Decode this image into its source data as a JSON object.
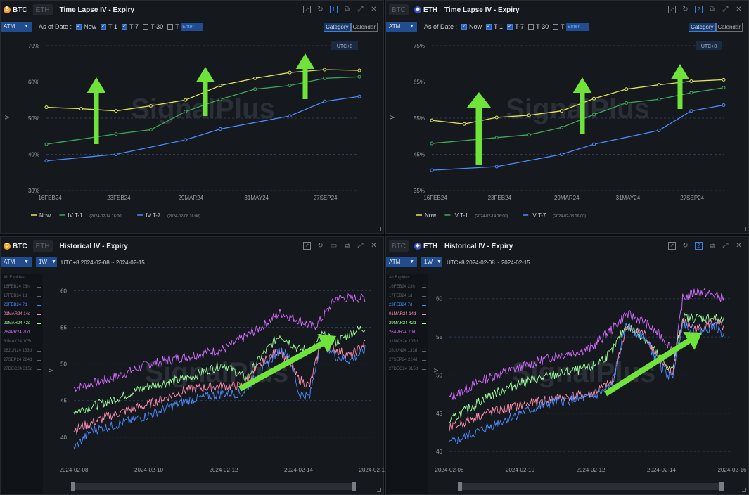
{
  "panels": {
    "btc_timelapse": {
      "coins": {
        "active": "BTC",
        "inactive": "ETH"
      },
      "title": "Time Lapse IV - Expiry",
      "window_badge": "1",
      "atm": "ATM",
      "as_of": "As of Date :",
      "checks": [
        {
          "label": "Now",
          "checked": true
        },
        {
          "label": "T-1",
          "checked": true
        },
        {
          "label": "T-7",
          "checked": true
        },
        {
          "label": "T-30",
          "checked": false
        },
        {
          "label": "T-",
          "checked": false
        }
      ],
      "input_placeholder": "Enter",
      "toggle": [
        "Category",
        "Calendar"
      ],
      "timezone": "UTC+8",
      "watermark": "SignalPlus",
      "legend": [
        {
          "label": "Now",
          "note": ""
        },
        {
          "label": "IV T-1",
          "note": "(2024-02-14 16:00)"
        },
        {
          "label": "IV T-7",
          "note": "(2024-02-08 16:00)"
        }
      ]
    },
    "eth_timelapse": {
      "coins": {
        "active": "ETH",
        "inactive": "BTC"
      },
      "title": "Time Lapse IV - Expiry",
      "window_badge": "2",
      "atm": "ATM",
      "as_of": "As of Date :",
      "checks": [
        {
          "label": "Now",
          "checked": true
        },
        {
          "label": "T-1",
          "checked": true
        },
        {
          "label": "T-7",
          "checked": true
        },
        {
          "label": "T-30",
          "checked": false
        },
        {
          "label": "T-",
          "checked": false
        }
      ],
      "input_placeholder": "Enter",
      "toggle": [
        "Category",
        "Calendar"
      ],
      "timezone": "UTC+8",
      "watermark": "SignalPlus",
      "legend": [
        {
          "label": "Now",
          "note": ""
        },
        {
          "label": "IV T-1",
          "note": "(2024-02-14 16:00)"
        },
        {
          "label": "IV T-7",
          "note": "(2024-02-08 16:00)"
        }
      ]
    },
    "btc_historical": {
      "coins": {
        "active": "BTC",
        "inactive": "ETH"
      },
      "title": "Historical IV - Expiry",
      "atm": "ATM",
      "period": "1W",
      "range": "UTC+8 2024-02-08 ~ 2024-02-15",
      "watermark": "SignalPlus",
      "expiries_header": "All Expiries",
      "expiries": [
        {
          "label": "16FEB24 23h",
          "color": "#5d636c"
        },
        {
          "label": "17FEB24 1d",
          "color": "#5d636c"
        },
        {
          "label": "23FEB24 7d",
          "color": "#4a8cff"
        },
        {
          "label": "01MAR24 14d",
          "color": "#ff8fb0"
        },
        {
          "label": "29MAR24 42d",
          "color": "#9cff9c"
        },
        {
          "label": "26APR24 70d",
          "color": "#d26bff"
        },
        {
          "label": "31MAY24 105d",
          "color": "#5d636c"
        },
        {
          "label": "28JUN24 133d",
          "color": "#5d636c"
        },
        {
          "label": "27SEP24 224d",
          "color": "#5d636c"
        },
        {
          "label": "27DEC24 315d",
          "color": "#5d636c"
        }
      ]
    },
    "eth_historical": {
      "coins": {
        "active": "ETH",
        "inactive": "BTC"
      },
      "title": "Historical IV - Expiry",
      "atm": "ATM",
      "period": "1W",
      "range": "UTC+8 2024-02-08 ~ 2024-02-15",
      "watermark": "SignalPlus",
      "expiries_header": "All Expiries",
      "expiries": [
        {
          "label": "16FEB24 23h",
          "color": "#5d636c"
        },
        {
          "label": "17FEB24 1d",
          "color": "#5d636c"
        },
        {
          "label": "23FEB24 7d",
          "color": "#4a8cff"
        },
        {
          "label": "01MAR24 14d",
          "color": "#ff8fb0"
        },
        {
          "label": "29MAR24 42d",
          "color": "#9cff9c"
        },
        {
          "label": "26APR24 70d",
          "color": "#d26bff"
        },
        {
          "label": "31MAY24 105d",
          "color": "#5d636c"
        },
        {
          "label": "28JUN24 133d",
          "color": "#5d636c"
        },
        {
          "label": "27SEP24 224d",
          "color": "#5d636c"
        },
        {
          "label": "27DEC24 315d",
          "color": "#5d636c"
        }
      ]
    }
  },
  "chart_data": [
    {
      "id": "btc_tl",
      "type": "line",
      "ylabel": "IV",
      "yticks": [
        "70%",
        "60%",
        "50%",
        "40%",
        "30%"
      ],
      "ylim": [
        30,
        70
      ],
      "xticks": [
        "16FEB24",
        "23FEB24",
        "29MAR24",
        "31MAY24",
        "27SEP24"
      ],
      "series": [
        {
          "name": "Now",
          "color": "#e6e65a",
          "values": [
            53,
            52.6,
            52,
            53.4,
            55,
            59,
            61,
            62.6,
            63.4,
            63.2
          ]
        },
        {
          "name": "IV T-1",
          "color": "#3ea85a",
          "values": [
            42.8,
            null,
            45.6,
            46.8,
            51.8,
            55.2,
            58,
            59,
            61,
            61.4
          ]
        },
        {
          "name": "IV T-7",
          "color": "#4a8cff",
          "values": [
            38.2,
            null,
            40,
            null,
            44,
            47,
            null,
            50.6,
            54.6,
            56
          ]
        }
      ],
      "arrow_color": "#6fe33a"
    },
    {
      "id": "eth_tl",
      "type": "line",
      "ylabel": "IV",
      "yticks": [
        "75%",
        "65%",
        "55%",
        "45%",
        "35%"
      ],
      "ylim": [
        35,
        75
      ],
      "xticks": [
        "16FEB24",
        "23FEB24",
        "29MAR24",
        "31MAY24",
        "27SEP24"
      ],
      "series": [
        {
          "name": "Now",
          "color": "#e6e65a",
          "values": [
            54.4,
            53.4,
            55.2,
            55.8,
            57,
            60.4,
            63,
            64.2,
            65.2,
            65.6
          ]
        },
        {
          "name": "IV T-1",
          "color": "#3ea85a",
          "values": [
            48,
            null,
            49.6,
            50.4,
            52.4,
            56,
            59.2,
            60.2,
            62,
            63.4
          ]
        },
        {
          "name": "IV T-7",
          "color": "#4a8cff",
          "values": [
            40.6,
            null,
            41.6,
            null,
            45,
            47.8,
            null,
            51.6,
            57,
            58.6
          ]
        }
      ],
      "arrow_color": "#6fe33a"
    },
    {
      "id": "btc_hist",
      "type": "line",
      "ylabel": "IV",
      "yticks": [
        "60",
        "55",
        "50",
        "45",
        "40"
      ],
      "ylim": [
        37,
        61
      ],
      "xticks": [
        "2024-02-08",
        "2024-02-10",
        "2024-02-12",
        "2024-02-14",
        "2024-02-16"
      ],
      "xlim": [
        0,
        8
      ],
      "series": [
        {
          "name": "26APR24 70d",
          "color": "#d26bff",
          "anchors": [
            [
              0,
              46.7
            ],
            [
              1,
              48
            ],
            [
              2,
              50
            ],
            [
              3,
              51
            ],
            [
              4,
              52
            ],
            [
              5,
              55
            ],
            [
              5.5,
              57
            ],
            [
              6,
              56
            ],
            [
              6.4,
              55
            ],
            [
              6.6,
              56
            ],
            [
              7,
              59
            ],
            [
              7.5,
              59
            ],
            [
              7.8,
              59
            ]
          ]
        },
        {
          "name": "29MAR24 42d",
          "color": "#9cff9c",
          "anchors": [
            [
              0,
              43.5
            ],
            [
              1,
              45
            ],
            [
              2,
              47
            ],
            [
              3,
              48
            ],
            [
              4,
              50
            ],
            [
              4.6,
              48
            ],
            [
              5,
              51
            ],
            [
              5.5,
              54
            ],
            [
              6,
              52
            ],
            [
              6.4,
              52
            ],
            [
              6.6,
              54
            ],
            [
              7,
              53
            ],
            [
              7.5,
              54.5
            ],
            [
              7.8,
              55
            ]
          ]
        },
        {
          "name": "01MAR24 14d",
          "color": "#ff8fb0",
          "anchors": [
            [
              0,
              41
            ],
            [
              1,
              43
            ],
            [
              2,
              44.5
            ],
            [
              3,
              46.5
            ],
            [
              4,
              47
            ],
            [
              4.5,
              47
            ],
            [
              5,
              50
            ],
            [
              5.5,
              52
            ],
            [
              6,
              48
            ],
            [
              6.3,
              47
            ],
            [
              6.6,
              53
            ],
            [
              7,
              52
            ],
            [
              7.4,
              51
            ],
            [
              7.8,
              53
            ]
          ]
        },
        {
          "name": "23FEB24 7d",
          "color": "#4a8cff",
          "anchors": [
            [
              0,
              38.5
            ],
            [
              0.5,
              41
            ],
            [
              1,
              41.5
            ],
            [
              2,
              43
            ],
            [
              3,
              45
            ],
            [
              4,
              46
            ],
            [
              4.5,
              46
            ],
            [
              5,
              49
            ],
            [
              5.5,
              52
            ],
            [
              5.8,
              51
            ],
            [
              6,
              46
            ],
            [
              6.3,
              45.5
            ],
            [
              6.6,
              53.5
            ],
            [
              7,
              51
            ],
            [
              7.4,
              50.5
            ],
            [
              7.8,
              52
            ]
          ]
        }
      ],
      "arrow_color": "#6fe33a"
    },
    {
      "id": "eth_hist",
      "type": "line",
      "ylabel": "IV",
      "yticks": [
        "60",
        "55",
        "50",
        "45",
        "40"
      ],
      "ylim": [
        39,
        62
      ],
      "xticks": [
        "2024-02-08",
        "2024-02-10",
        "2024-02-12",
        "2024-02-14",
        "2024-02-16"
      ],
      "xlim": [
        0,
        8
      ],
      "series": [
        {
          "name": "26APR24 70d",
          "color": "#d26bff",
          "anchors": [
            [
              0,
              47
            ],
            [
              1,
              49.5
            ],
            [
              2,
              51
            ],
            [
              3,
              52.5
            ],
            [
              4,
              53.5
            ],
            [
              4.6,
              56
            ],
            [
              5,
              58
            ],
            [
              5.5,
              57
            ],
            [
              6,
              55
            ],
            [
              6.4,
              53
            ],
            [
              6.6,
              60
            ],
            [
              7,
              61
            ],
            [
              7.5,
              60.5
            ],
            [
              7.8,
              60
            ]
          ]
        },
        {
          "name": "29MAR24 42d",
          "color": "#9cff9c",
          "anchors": [
            [
              0,
              44
            ],
            [
              1,
              47
            ],
            [
              2,
              49
            ],
            [
              3,
              50
            ],
            [
              4,
              51
            ],
            [
              4.6,
              53
            ],
            [
              5,
              56.5
            ],
            [
              5.5,
              55
            ],
            [
              6,
              52
            ],
            [
              6.3,
              50.5
            ],
            [
              6.6,
              57.5
            ],
            [
              7,
              57.5
            ],
            [
              7.5,
              57.5
            ],
            [
              7.8,
              57
            ]
          ]
        },
        {
          "name": "01MAR24 14d",
          "color": "#ff8fb0",
          "anchors": [
            [
              0,
              43
            ],
            [
              1,
              45
            ],
            [
              2,
              46
            ],
            [
              3,
              47
            ],
            [
              4,
              47.5
            ],
            [
              4.6,
              49
            ],
            [
              5,
              56
            ],
            [
              5.5,
              55.5
            ],
            [
              6,
              51.5
            ],
            [
              6.3,
              50
            ],
            [
              6.6,
              57
            ],
            [
              7,
              56
            ],
            [
              7.5,
              57
            ],
            [
              7.8,
              56
            ]
          ]
        },
        {
          "name": "23FEB24 7d",
          "color": "#4a8cff",
          "anchors": [
            [
              0,
              41
            ],
            [
              0.5,
              42
            ],
            [
              1,
              43
            ],
            [
              2,
              45
            ],
            [
              3,
              46.5
            ],
            [
              4,
              47
            ],
            [
              4.6,
              48.5
            ],
            [
              5,
              56.5
            ],
            [
              5.5,
              55
            ],
            [
              6,
              51
            ],
            [
              6.3,
              49.5
            ],
            [
              6.6,
              57
            ],
            [
              7,
              55.5
            ],
            [
              7.5,
              56.5
            ],
            [
              7.8,
              55
            ]
          ]
        }
      ],
      "arrow_color": "#6fe33a"
    }
  ]
}
